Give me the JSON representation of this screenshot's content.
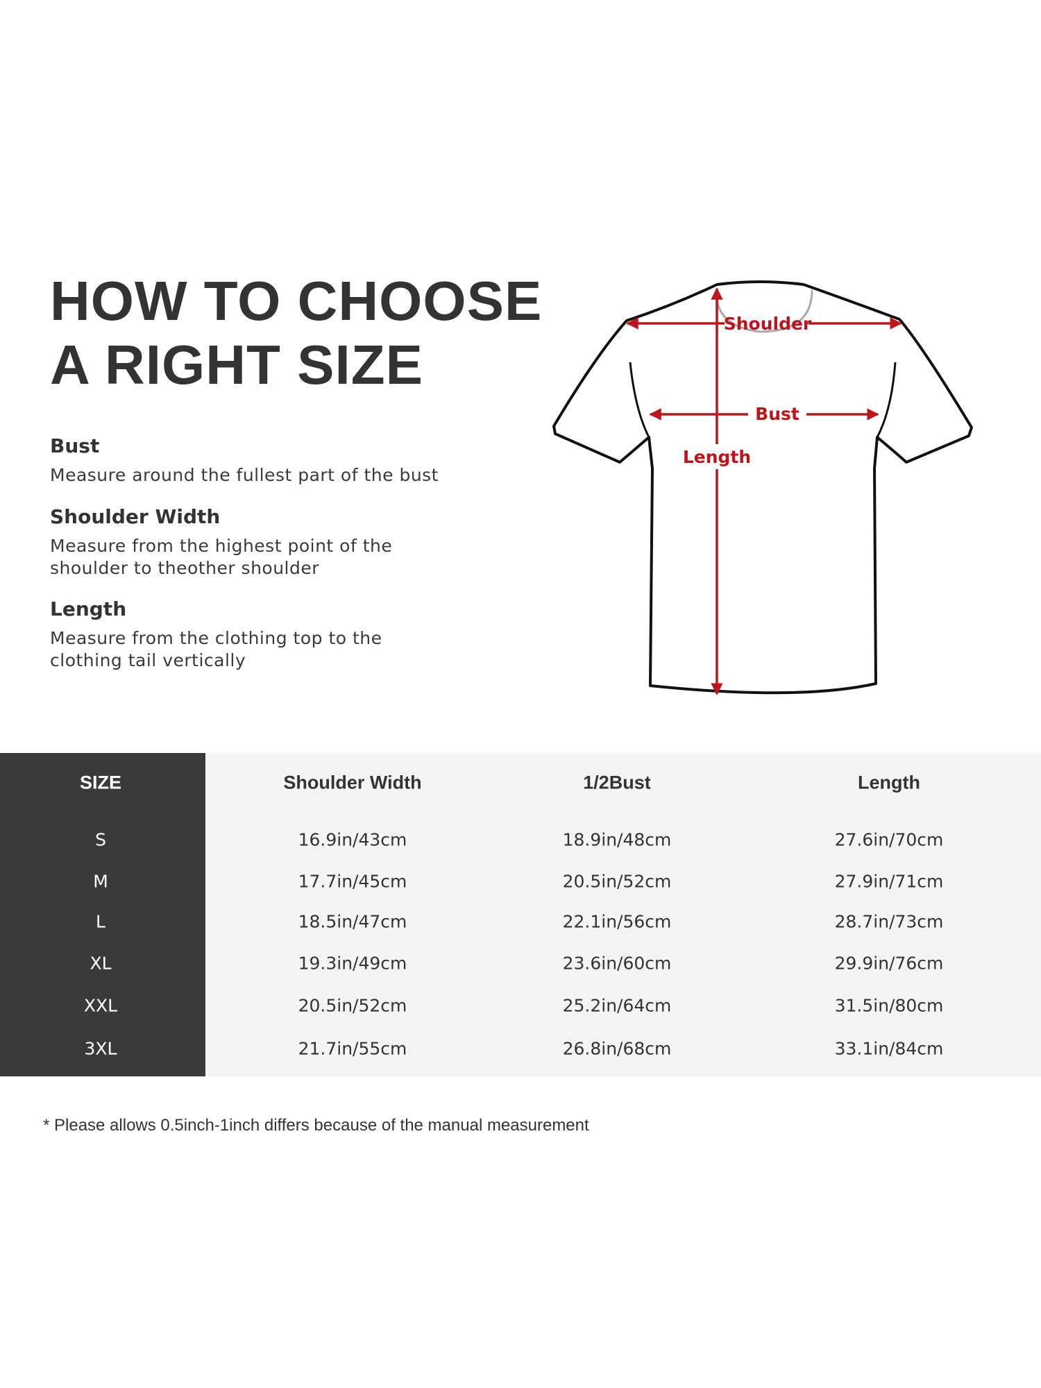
{
  "title": {
    "line1": "HOW TO CHOOSE",
    "line2": "A RIGHT SIZE"
  },
  "guide": [
    {
      "label": "Bust",
      "desc": [
        "Measure around the fullest part of the bust"
      ]
    },
    {
      "label": "Shoulder Width",
      "desc": [
        "Measure from the highest point of the",
        "shoulder to theother shoulder"
      ]
    },
    {
      "label": "Length",
      "desc": [
        "Measure from the clothing top to the",
        "clothing tail vertically"
      ]
    }
  ],
  "diagram": {
    "shoulder": "Shoulder",
    "bust": "Bust",
    "length": "Length",
    "arrow_color": "#c0141c"
  },
  "table": {
    "headers": [
      "SIZE",
      "Shoulder Width",
      "1/2Bust",
      "Length"
    ],
    "rows": [
      [
        "S",
        "16.9in/43cm",
        "18.9in/48cm",
        "27.6in/70cm"
      ],
      [
        "M",
        "17.7in/45cm",
        "20.5in/52cm",
        "27.9in/71cm"
      ],
      [
        "L",
        "18.5in/47cm",
        "22.1in/56cm",
        "28.7in/73cm"
      ],
      [
        "XL",
        "19.3in/49cm",
        "23.6in/60cm",
        "29.9in/76cm"
      ],
      [
        "XXL",
        "20.5in/52cm",
        "25.2in/64cm",
        "31.5in/80cm"
      ],
      [
        "3XL",
        "21.7in/55cm",
        "26.8in/68cm",
        "33.1in/84cm"
      ]
    ]
  },
  "note": "* Please allows 0.5inch-1inch differs because of the  manual measurement"
}
